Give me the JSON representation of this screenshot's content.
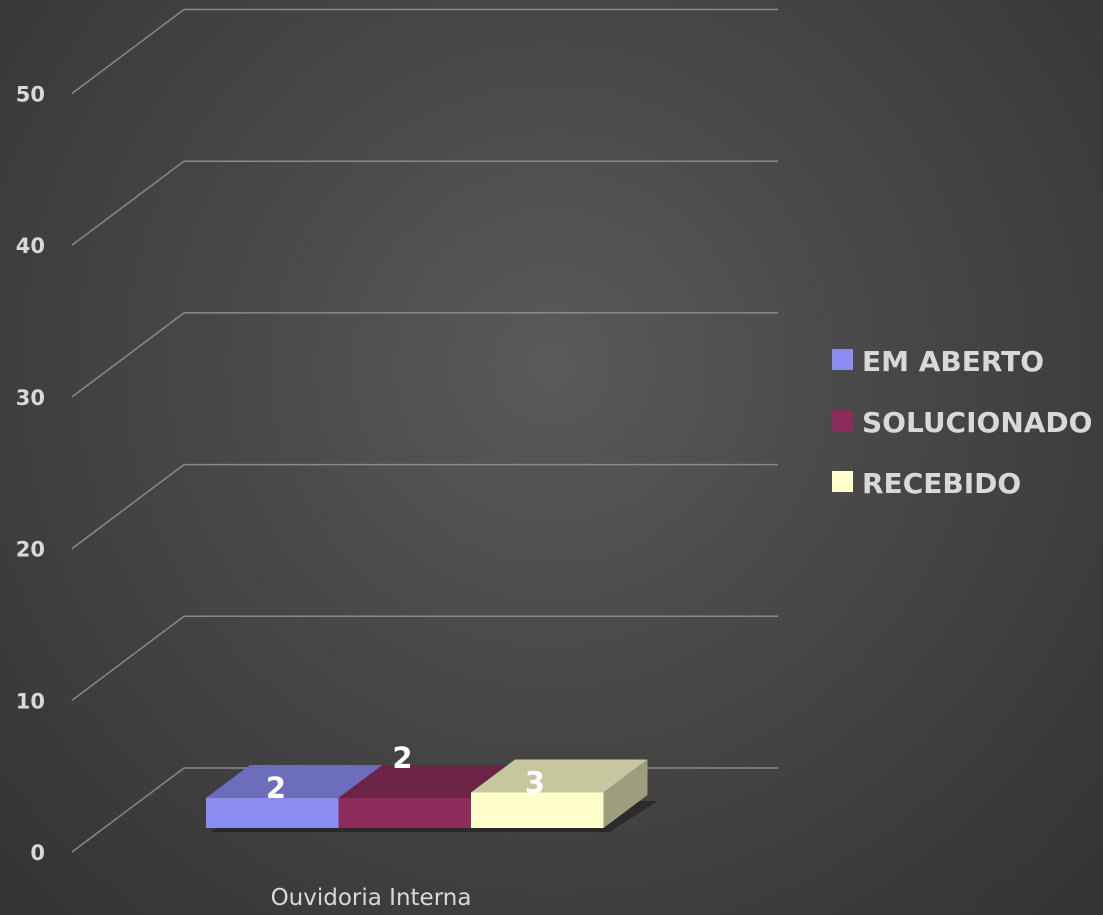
{
  "chart_data": {
    "type": "bar",
    "categories": [
      "Ouvidoria Interna"
    ],
    "series": [
      {
        "name": "EM ABERTO",
        "values": [
          2
        ],
        "color": "#8b8cf2"
      },
      {
        "name": "SOLUCIONADO",
        "values": [
          2
        ],
        "color": "#8c2b5c"
      },
      {
        "name": "RECEBIDO",
        "values": [
          3
        ],
        "color": "#ffffcc"
      }
    ],
    "ylim": [
      0,
      50
    ],
    "yticks": [
      "0",
      "10",
      "20",
      "30",
      "40",
      "50"
    ],
    "grid": true,
    "three_d": true,
    "legend_position": "right",
    "background": "#444444"
  }
}
